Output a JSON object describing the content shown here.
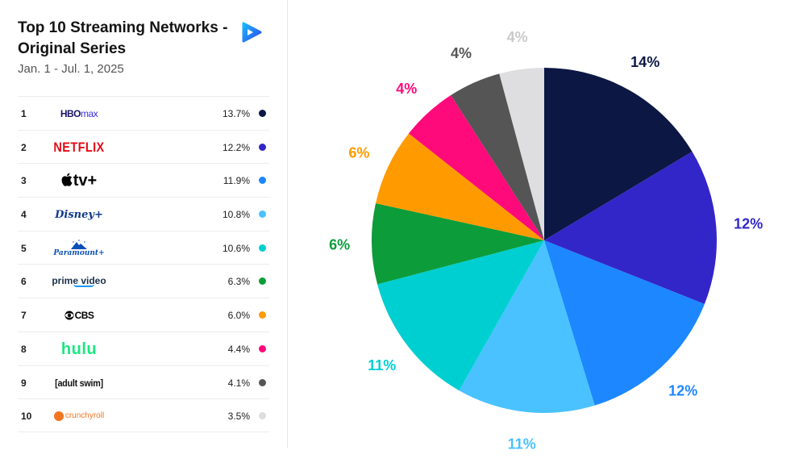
{
  "header": {
    "title": "Top 10 Streaming Networks - Original Series",
    "date_range": "Jan. 1 - Jul. 1, 2025"
  },
  "brand_logo_icon": "play-triangle-logo-icon",
  "networks": [
    {
      "rank": "1",
      "logo_text": "HBO",
      "logo_text2": "max",
      "share": "13.7%",
      "color": "#0c1744"
    },
    {
      "rank": "2",
      "logo_text": "NETFLIX",
      "share": "12.2%",
      "color": "#3226c8"
    },
    {
      "rank": "3",
      "logo_text": "tv+",
      "share": "11.9%",
      "color": "#1c87ff"
    },
    {
      "rank": "4",
      "logo_text": "Disney+",
      "share": "10.8%",
      "color": "#49c2ff"
    },
    {
      "rank": "5",
      "logo_text": "Paramount+",
      "share": "10.6%",
      "color": "#00cfd1"
    },
    {
      "rank": "6",
      "logo_text": "prime video",
      "share": "6.3%",
      "color": "#0c9c3a"
    },
    {
      "rank": "7",
      "logo_text": "CBS",
      "share": "6.0%",
      "color": "#ff9b00"
    },
    {
      "rank": "8",
      "logo_text": "hulu",
      "share": "4.4%",
      "color": "#ff0a7a"
    },
    {
      "rank": "9",
      "logo_text": "[adult swim]",
      "share": "4.1%",
      "color": "#555555"
    },
    {
      "rank": "10",
      "logo_text": "crunchyroll",
      "share": "3.5%",
      "color": "#dedee0"
    }
  ],
  "chart_data": {
    "type": "pie",
    "title": "",
    "categories": [
      "HBO Max",
      "Netflix",
      "Apple TV+",
      "Disney+",
      "Paramount+",
      "Prime Video",
      "CBS",
      "Hulu",
      "Adult Swim",
      "Crunchyroll"
    ],
    "values": [
      13.7,
      12.2,
      11.9,
      10.8,
      10.6,
      6.3,
      6.0,
      4.4,
      4.1,
      3.5
    ],
    "labels": [
      "14%",
      "12%",
      "12%",
      "11%",
      "11%",
      "6%",
      "6%",
      "4%",
      "4%",
      "4%"
    ],
    "colors": [
      "#0c1744",
      "#3226c8",
      "#1c87ff",
      "#49c2ff",
      "#00cfd1",
      "#0c9c3a",
      "#ff9b00",
      "#ff0a7a",
      "#555555",
      "#dedee0"
    ],
    "start_angle": "12 o'clock",
    "direction": "clockwise"
  }
}
